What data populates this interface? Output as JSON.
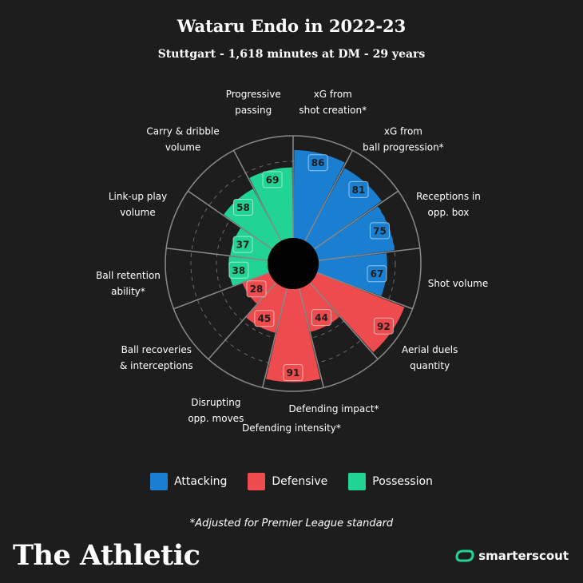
{
  "header": {
    "title": "Wataru Endo in 2022-23",
    "subtitle": "Stuttgart - 1,618 minutes at DM - 29 years"
  },
  "colors": {
    "attacking": "#1b7fd1",
    "defensive": "#ee4b4e",
    "possession": "#22d494",
    "background": "#1d1d1d",
    "grid": "#8a8a8a"
  },
  "chart_data": {
    "type": "radial-bar",
    "max": 100,
    "segments": [
      {
        "label": [
          "xG from",
          "shot creation*"
        ],
        "value": 86,
        "group": "attacking"
      },
      {
        "label": [
          "xG from",
          "ball progression*"
        ],
        "value": 81,
        "group": "attacking"
      },
      {
        "label": [
          "Receptions in",
          "opp. box"
        ],
        "value": 75,
        "group": "attacking"
      },
      {
        "label": [
          "Shot volume"
        ],
        "value": 67,
        "group": "attacking"
      },
      {
        "label": [
          "Aerial duels",
          "quantity"
        ],
        "value": 92,
        "group": "defensive"
      },
      {
        "label": [
          "Defending impact*"
        ],
        "value": 44,
        "group": "defensive"
      },
      {
        "label": [
          "Defending intensity*"
        ],
        "value": 91,
        "group": "defensive"
      },
      {
        "label": [
          "Disrupting",
          "opp. moves"
        ],
        "value": 45,
        "group": "defensive"
      },
      {
        "label": [
          "Ball recoveries",
          "& interceptions"
        ],
        "value": 28,
        "group": "defensive"
      },
      {
        "label": [
          "Ball retention",
          "ability*"
        ],
        "value": 38,
        "group": "possession"
      },
      {
        "label": [
          "Link-up play",
          "volume"
        ],
        "value": 37,
        "group": "possession"
      },
      {
        "label": [
          "Carry & dribble",
          "volume"
        ],
        "value": 58,
        "group": "possession"
      },
      {
        "label": [
          "Progressive",
          "passing"
        ],
        "value": 69,
        "group": "possession"
      }
    ],
    "legend": [
      {
        "name": "Attacking",
        "group": "attacking"
      },
      {
        "name": "Defensive",
        "group": "defensive"
      },
      {
        "name": "Possession",
        "group": "possession"
      }
    ]
  },
  "footnote": "*Adjusted for Premier League standard",
  "brand": "The Athletic",
  "partner": "smarterscout"
}
